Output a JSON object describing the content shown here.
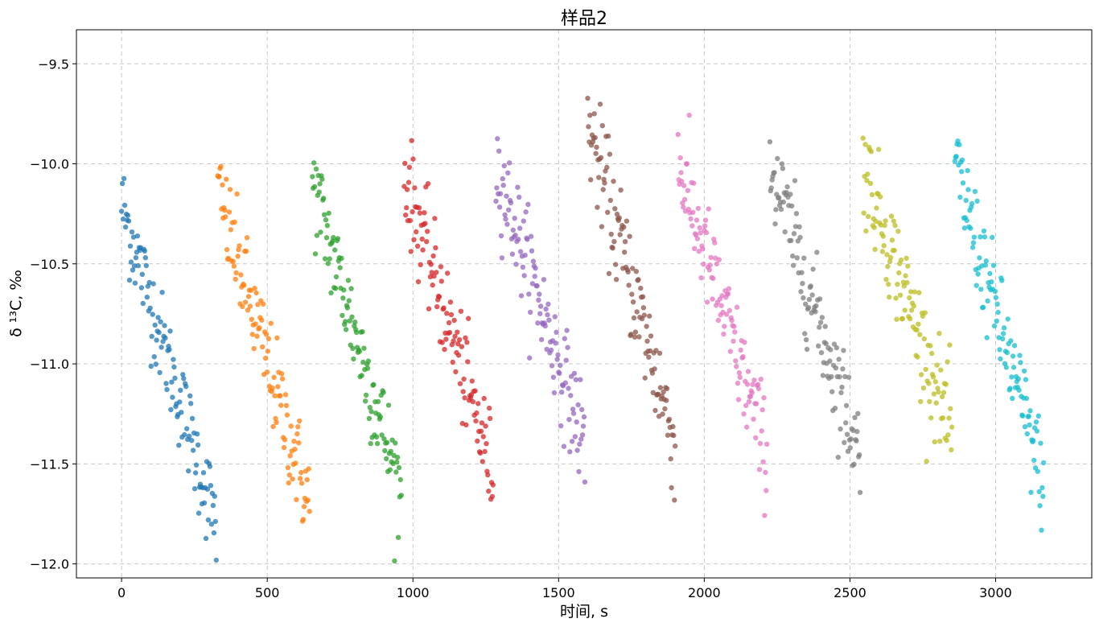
{
  "chart_data": {
    "type": "scatter",
    "title": "样品2",
    "xlabel": "时间, s",
    "ylabel": "δ ¹³C, ‰",
    "xlim": [
      -155,
      3330
    ],
    "ylim": [
      -12.07,
      -9.33
    ],
    "xticks": [
      0,
      500,
      1000,
      1500,
      2000,
      2500,
      3000
    ],
    "xtick_labels": [
      "0",
      "500",
      "1000",
      "1500",
      "2000",
      "2500",
      "3000"
    ],
    "yticks": [
      -9.5,
      -10.0,
      -10.5,
      -11.0,
      -11.5,
      -12.0
    ],
    "ytick_labels": [
      "−9.5",
      "−10.0",
      "−10.5",
      "−11.0",
      "−11.5",
      "−12.0"
    ],
    "grid": true,
    "legend": "none",
    "marker": "circle",
    "marker_alpha": 0.75,
    "series": [
      {
        "color": "#1f77b4",
        "x_start": 0,
        "x_end": 325,
        "y_start": -10.2,
        "y_end": -11.8,
        "points": 120,
        "noise": 0.12
      },
      {
        "color": "#ff7f0e",
        "x_start": 330,
        "x_end": 645,
        "y_start": -10.15,
        "y_end": -11.7,
        "points": 120,
        "noise": 0.13
      },
      {
        "color": "#2ca02c",
        "x_start": 655,
        "x_end": 960,
        "y_start": -10.1,
        "y_end": -11.65,
        "points": 120,
        "noise": 0.13
      },
      {
        "color": "#d62728",
        "x_start": 970,
        "x_end": 1275,
        "y_start": -10.05,
        "y_end": -11.55,
        "points": 120,
        "noise": 0.13
      },
      {
        "color": "#9467bd",
        "x_start": 1285,
        "x_end": 1590,
        "y_start": -10.0,
        "y_end": -11.4,
        "points": 120,
        "noise": 0.13
      },
      {
        "color": "#8c564b",
        "x_start": 1600,
        "x_end": 1900,
        "y_start": -9.8,
        "y_end": -11.4,
        "points": 120,
        "noise": 0.14
      },
      {
        "color": "#e377c2",
        "x_start": 1910,
        "x_end": 2215,
        "y_start": -10.0,
        "y_end": -11.45,
        "points": 120,
        "noise": 0.13
      },
      {
        "color": "#7f7f7f",
        "x_start": 2225,
        "x_end": 2535,
        "y_start": -10.0,
        "y_end": -11.45,
        "points": 120,
        "noise": 0.13
      },
      {
        "color": "#bcbd22",
        "x_start": 2545,
        "x_end": 2850,
        "y_start": -10.0,
        "y_end": -11.35,
        "points": 120,
        "noise": 0.13
      },
      {
        "color": "#17becf",
        "x_start": 2860,
        "x_end": 3165,
        "y_start": -10.0,
        "y_end": -11.6,
        "points": 120,
        "noise": 0.13
      }
    ]
  }
}
